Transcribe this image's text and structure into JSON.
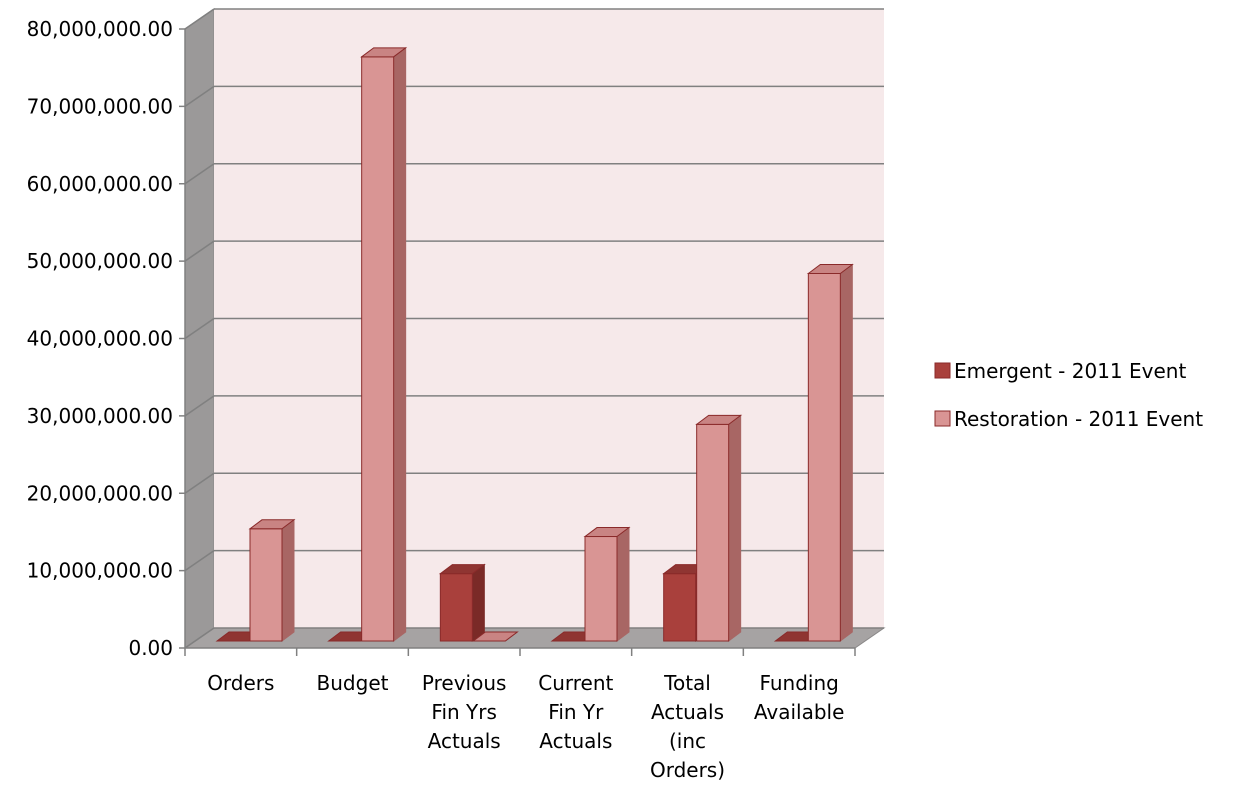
{
  "chart_data": {
    "type": "bar",
    "style": "3d-clustered-column",
    "categories": [
      [
        "Orders"
      ],
      [
        "Budget"
      ],
      [
        "Previous",
        "Fin Yrs",
        "Actuals"
      ],
      [
        "Current",
        "Fin Yr",
        "Actuals"
      ],
      [
        "Total",
        "Actuals",
        "(inc",
        "Orders)"
      ],
      [
        "Funding",
        "Available"
      ]
    ],
    "series": [
      {
        "name": "Emergent - 2011 Event",
        "color": "#a9403c",
        "side_color": "#7a2a27",
        "top_color": "#8f3532",
        "values": [
          0,
          0,
          8700000,
          0,
          8700000,
          0
        ]
      },
      {
        "name": "Restoration - 2011 Event",
        "color": "#d99594",
        "side_color": "#a86664",
        "top_color": "#c98483",
        "values": [
          14500000,
          75500000,
          0,
          13500000,
          28000000,
          47500000
        ]
      }
    ],
    "ylim": [
      0,
      80000000
    ],
    "ytick_step": 10000000,
    "ytick_labels": [
      "0.00",
      "10,000,000.00",
      "20,000,000.00",
      "30,000,000.00",
      "40,000,000.00",
      "50,000,000.00",
      "60,000,000.00",
      "70,000,000.00",
      "80,000,000.00"
    ],
    "grid": true,
    "legend": "right",
    "title": "",
    "xlabel": "",
    "ylabel": "",
    "colors": {
      "back_wall": "#f6e9ea",
      "side_wall": "#9b9999",
      "floor": "#a6a3a3",
      "gridline": "#808080"
    }
  }
}
